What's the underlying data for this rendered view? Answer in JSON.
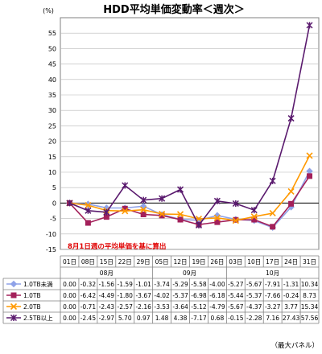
{
  "chart_data": {
    "type": "line",
    "title": "HDD平均単価変動率＜週次＞",
    "y_unit": "(%)",
    "ylim": [
      -15,
      60
    ],
    "yticks": [
      -15,
      -10,
      -5,
      0,
      5,
      10,
      15,
      20,
      25,
      30,
      35,
      40,
      45,
      50,
      55
    ],
    "grid": true,
    "categories": [
      "01日",
      "08日",
      "15日",
      "22日",
      "29日",
      "05日",
      "12日",
      "19日",
      "26日",
      "03日",
      "10日",
      "17日",
      "24日",
      "31日"
    ],
    "months": [
      {
        "label": "08月",
        "start": 0,
        "end": 4
      },
      {
        "label": "09月",
        "start": 5,
        "end": 8
      },
      {
        "label": "10月",
        "start": 9,
        "end": 13
      }
    ],
    "series": [
      {
        "name": "1.0TB未満",
        "color": "#8fa2e8",
        "marker": "diamond",
        "values": [
          0.0,
          -0.32,
          -1.56,
          -1.59,
          -1.01,
          -3.74,
          -5.29,
          -5.58,
          -4.0,
          -5.27,
          -5.67,
          -7.91,
          -1.31,
          10.34
        ]
      },
      {
        "name": "1.0TB",
        "color": "#a3205a",
        "marker": "square",
        "values": [
          0.0,
          -6.42,
          -4.49,
          -1.8,
          -3.67,
          -4.02,
          -5.37,
          -6.98,
          -6.18,
          -5.44,
          -5.37,
          -7.66,
          -0.24,
          8.73
        ]
      },
      {
        "name": "2.0TB",
        "color": "#ff9900",
        "marker": "x",
        "values": [
          0.0,
          -0.71,
          -2.43,
          -2.57,
          -2.16,
          -3.53,
          -3.64,
          -5.12,
          -4.79,
          -5.67,
          -4.37,
          -3.27,
          3.77,
          15.34
        ]
      },
      {
        "name": "2.5TB以上",
        "color": "#5a1a6e",
        "marker": "star",
        "values": [
          0.0,
          -2.45,
          -2.97,
          5.7,
          0.97,
          1.48,
          4.38,
          -7.17,
          0.68,
          -0.15,
          -2.28,
          7.16,
          27.43,
          57.56
        ]
      }
    ],
    "table_values": [
      [
        "0.00",
        "-0.32",
        "-1.56",
        "-1.59",
        "-1.01",
        "-3.74",
        "-5.29",
        "-5.58",
        "-4.00",
        "-5.27",
        "-5.67",
        "-7.91",
        "-1.31",
        "10.34"
      ],
      [
        "0.00",
        "-6.42",
        "-4.49",
        "-1.80",
        "-3.67",
        "-4.02",
        "-5.37",
        "-6.98",
        "-6.18",
        "-5.44",
        "-5.37",
        "-7.66",
        "-0.24",
        "8.73"
      ],
      [
        "0.00",
        "-0.71",
        "-2.43",
        "-2.57",
        "-2.16",
        "-3.53",
        "-3.64",
        "-5.12",
        "-4.79",
        "-5.67",
        "-4.37",
        "-3.27",
        "3.77",
        "15.34"
      ],
      [
        "0.00",
        "-2.45",
        "-2.97",
        "5.70",
        "0.97",
        "1.48",
        "4.38",
        "-7.17",
        "0.68",
        "-0.15",
        "-2.28",
        "7.16",
        "27.43",
        "57.56"
      ]
    ],
    "annotation": "8月1日週の平均単価を基に算出",
    "footer": "（最大パネル）"
  }
}
